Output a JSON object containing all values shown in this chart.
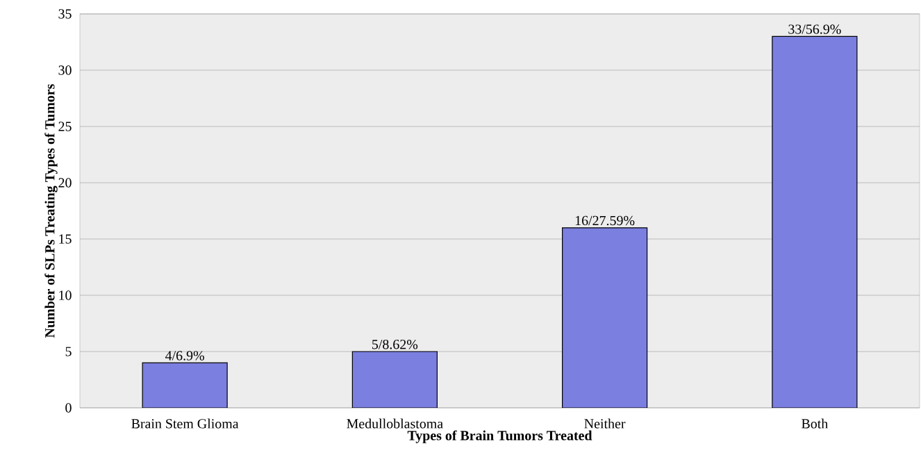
{
  "chart_data": {
    "type": "bar",
    "xlabel": "Types of Brain Tumors Treated",
    "ylabel": "Number of SLPs Treating Types of Tumors",
    "categories": [
      "Brain Stem Glioma",
      "Medulloblastoma",
      "Neither",
      "Both"
    ],
    "values": [
      4,
      5,
      16,
      33
    ],
    "color": "#7b7fe0",
    "value_labels": [
      "4/6.9%",
      "5/8.62%",
      "16/27.59%",
      "33/56.9%"
    ],
    "ylim": [
      0,
      35
    ],
    "yticks": [
      0,
      5,
      10,
      15,
      20,
      25,
      30,
      35
    ],
    "grid": "y"
  }
}
